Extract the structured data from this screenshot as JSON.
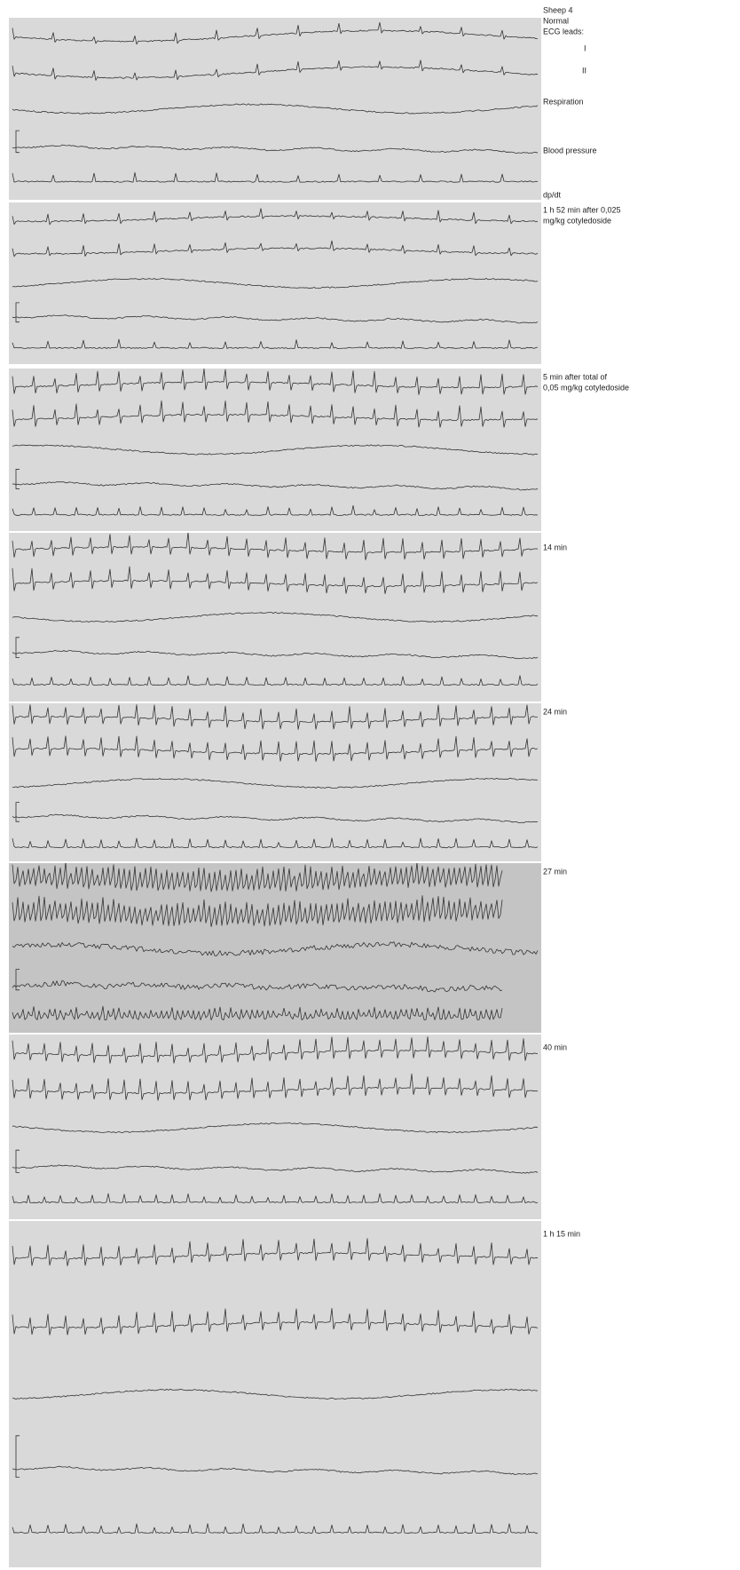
{
  "header": {
    "subject": "Sheep 4",
    "condition": "Normal",
    "leads_label": "ECG leads:",
    "lead_1": "I",
    "lead_2": "II"
  },
  "channels": [
    "Respiration",
    "Blood pressure",
    "dp/dt"
  ],
  "panels": [
    {
      "label": [
        "1 h 52 min after 0,025",
        "mg/kg cotyledoside"
      ]
    },
    {
      "label": [
        "5 min after total of",
        "0,05 mg/kg cotyledoside"
      ]
    },
    {
      "label": [
        "14 min"
      ]
    },
    {
      "label": [
        "24 min"
      ]
    },
    {
      "label": [
        "27 min"
      ]
    },
    {
      "label": [
        "40 min"
      ]
    },
    {
      "label": [
        "1 h 15 min"
      ]
    }
  ]
}
